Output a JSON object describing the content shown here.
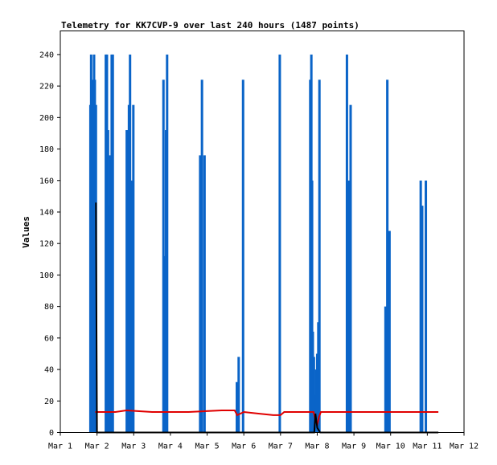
{
  "chart_data": {
    "type": "bar",
    "title": "Telemetry for KK7CVP-9 over last 240 hours (1487 points)",
    "xlabel": "",
    "ylabel": "Values",
    "xlim": [
      0,
      11
    ],
    "ylim": [
      0,
      255
    ],
    "x_tick_values": [
      0,
      1,
      2,
      3,
      4,
      5,
      6,
      7,
      8,
      9,
      10,
      11
    ],
    "x_tick_labels": [
      "Mar 1",
      "Mar 2",
      "Mar 3",
      "Mar 4",
      "Mar 5",
      "Mar 6",
      "Mar 7",
      "Mar 8",
      "Mar 9",
      "Mar 10",
      "Mar 11",
      "Mar 12"
    ],
    "y_ticks": [
      0,
      20,
      40,
      60,
      80,
      100,
      120,
      140,
      160,
      180,
      200,
      220,
      240
    ],
    "grid": false,
    "legend": "none",
    "colors": {
      "bars": "#0a64c8",
      "red_series": "#e00000",
      "black_series": "#000000",
      "frame": "#000000"
    },
    "series": [
      {
        "values": [
          [
            0.82,
            208
          ],
          [
            0.84,
            240
          ],
          [
            0.86,
            224
          ],
          [
            0.88,
            208
          ],
          [
            0.92,
            240
          ],
          [
            0.94,
            224
          ],
          [
            0.97,
            208
          ],
          [
            1.24,
            240
          ],
          [
            1.27,
            240
          ],
          [
            1.3,
            192
          ],
          [
            1.33,
            144
          ],
          [
            1.36,
            176
          ],
          [
            1.4,
            240
          ],
          [
            1.43,
            240
          ],
          [
            1.81,
            192
          ],
          [
            1.84,
            144
          ],
          [
            1.87,
            208
          ],
          [
            1.9,
            240
          ],
          [
            1.93,
            160
          ],
          [
            1.99,
            208
          ],
          [
            2.81,
            224
          ],
          [
            2.85,
            112
          ],
          [
            2.88,
            192
          ],
          [
            2.91,
            240
          ],
          [
            3.81,
            176
          ],
          [
            3.86,
            224
          ],
          [
            3.93,
            176
          ],
          [
            4.81,
            32
          ],
          [
            4.86,
            48
          ],
          [
            4.98,
            224
          ],
          [
            5.98,
            240
          ],
          [
            6.81,
            224
          ],
          [
            6.84,
            240
          ],
          [
            6.86,
            160
          ],
          [
            6.88,
            64
          ],
          [
            6.91,
            48
          ],
          [
            6.94,
            24
          ],
          [
            6.97,
            40
          ],
          [
            7.0,
            50
          ],
          [
            7.03,
            70
          ],
          [
            7.06,
            224
          ],
          [
            7.81,
            240
          ],
          [
            7.86,
            160
          ],
          [
            7.91,
            208
          ],
          [
            8.86,
            80
          ],
          [
            8.91,
            224
          ],
          [
            8.97,
            128
          ],
          [
            9.82,
            160
          ],
          [
            9.86,
            144
          ],
          [
            9.96,
            160
          ]
        ]
      },
      {
        "values": [
          [
            0.95,
            13
          ],
          [
            1.5,
            13
          ],
          [
            1.8,
            14
          ],
          [
            2.5,
            13
          ],
          [
            3.5,
            13
          ],
          [
            4.4,
            14
          ],
          [
            4.75,
            14
          ],
          [
            4.82,
            11
          ],
          [
            5.0,
            13
          ],
          [
            5.4,
            12
          ],
          [
            5.8,
            11
          ],
          [
            6.0,
            11
          ],
          [
            6.1,
            13
          ],
          [
            6.9,
            13
          ],
          [
            6.95,
            8
          ],
          [
            7.0,
            5
          ],
          [
            7.05,
            10
          ],
          [
            7.1,
            13
          ],
          [
            8.0,
            13
          ],
          [
            8.9,
            13
          ],
          [
            9.1,
            13
          ],
          [
            9.8,
            13
          ],
          [
            10.0,
            13
          ],
          [
            10.3,
            13
          ]
        ]
      },
      {
        "values": [
          [
            0.97,
            146
          ],
          [
            1.0,
            0
          ],
          [
            2.0,
            0
          ],
          [
            3.0,
            0
          ],
          [
            4.0,
            0
          ],
          [
            5.0,
            0
          ],
          [
            6.0,
            0
          ],
          [
            6.92,
            0
          ],
          [
            6.95,
            12
          ],
          [
            7.0,
            3
          ],
          [
            7.08,
            0
          ],
          [
            8.0,
            0
          ],
          [
            9.0,
            0
          ],
          [
            10.0,
            0
          ],
          [
            10.3,
            0
          ]
        ]
      }
    ]
  }
}
